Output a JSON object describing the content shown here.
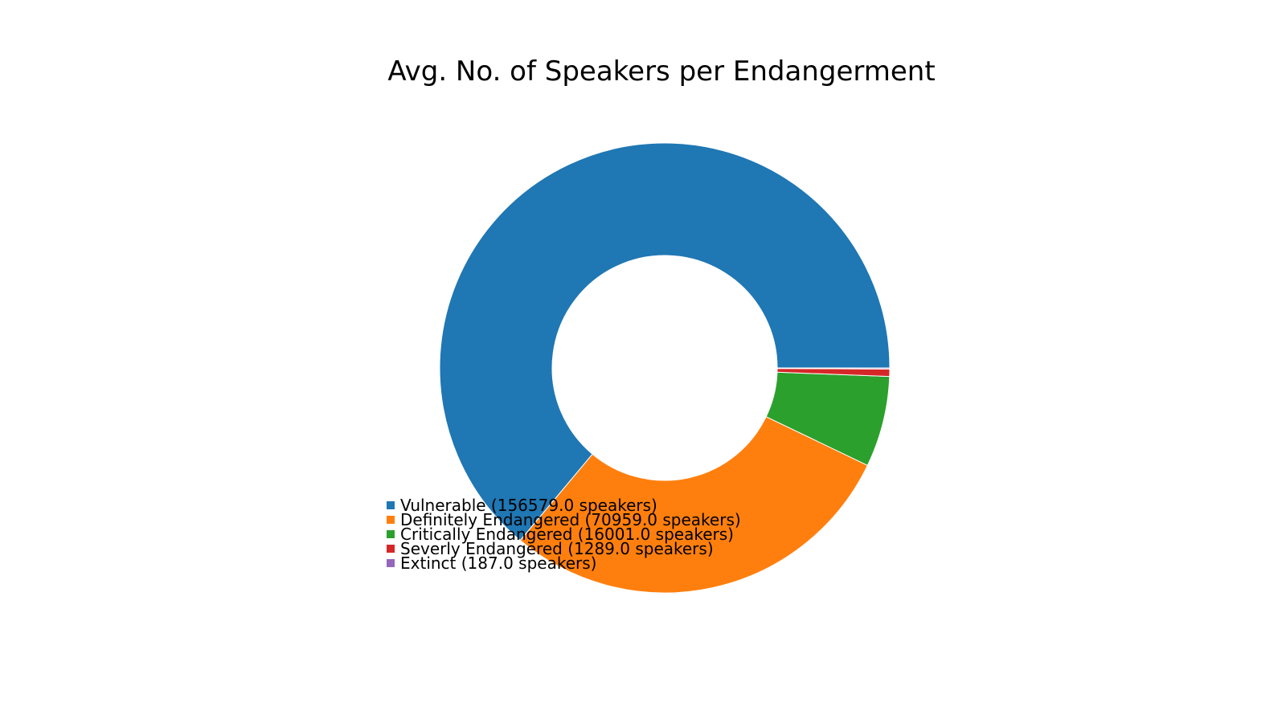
{
  "chart_data": {
    "type": "pie",
    "donut": true,
    "title": "Avg. No. of Speakers per Endangerment",
    "categories": [
      "Vulnerable",
      "Definitely Endangered",
      "Critically Endangered",
      "Severly Endangered",
      "Extinct"
    ],
    "values": [
      156579.0,
      70959.0,
      16001.0,
      1289.0,
      187.0
    ],
    "colors": [
      "#1f77b4",
      "#ff7f0e",
      "#2ca02c",
      "#d62728",
      "#9467bd"
    ],
    "legend": {
      "placement": "lower-left",
      "labels": [
        "Vulnerable (156579.0 speakers)",
        "Definitely Endangered (70959.0 speakers)",
        "Critically Endangered (16001.0 speakers)",
        "Severly Endangered (1289.0 speakers)",
        "Extinct (187.0 speakers)"
      ]
    }
  }
}
